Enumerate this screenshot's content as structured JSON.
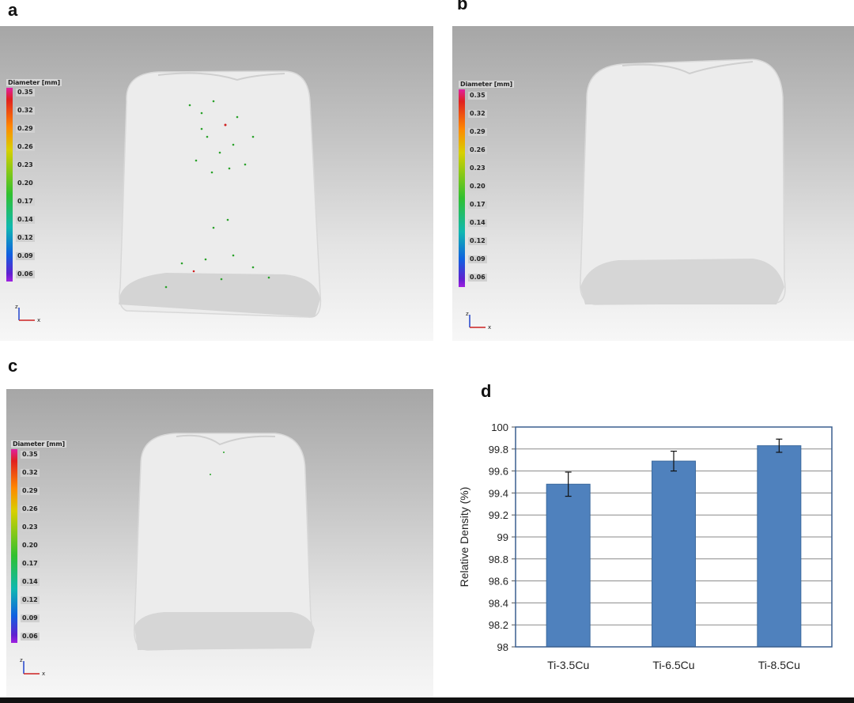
{
  "panels": [
    {
      "letter": "a",
      "scale_title": "Diameter [mm]",
      "scale_ticks": [
        "0.35",
        "0.32",
        "0.29",
        "0.26",
        "0.23",
        "0.20",
        "0.17",
        "0.14",
        "0.12",
        "0.09",
        "0.06"
      ]
    },
    {
      "letter": "b",
      "scale_title": "Diameter [mm]",
      "scale_ticks": [
        "0.35",
        "0.32",
        "0.29",
        "0.26",
        "0.23",
        "0.20",
        "0.17",
        "0.14",
        "0.12",
        "0.09",
        "0.06"
      ]
    },
    {
      "letter": "c",
      "scale_title": "Diameter [mm]",
      "scale_ticks": [
        "0.35",
        "0.32",
        "0.29",
        "0.26",
        "0.23",
        "0.20",
        "0.17",
        "0.14",
        "0.12",
        "0.09",
        "0.06"
      ]
    },
    {
      "letter": "d"
    }
  ],
  "axis_icon": {
    "z": "z",
    "x": "x"
  },
  "chart_data": {
    "type": "bar",
    "categories": [
      "Ti-3.5Cu",
      "Ti-6.5Cu",
      "Ti-8.5Cu"
    ],
    "values": [
      99.48,
      99.69,
      99.83
    ],
    "errors": [
      0.11,
      0.09,
      0.06
    ],
    "xlabel": "",
    "ylabel": "Relative Density (%)",
    "ylim": [
      98,
      100
    ],
    "yticks": [
      "98",
      "98.2",
      "98.4",
      "98.6",
      "98.8",
      "99",
      "99.2",
      "99.4",
      "99.6",
      "99.8",
      "100"
    ],
    "grid": true,
    "bar_color": "#4f81bd",
    "frame_color": "#3a5f8f"
  }
}
